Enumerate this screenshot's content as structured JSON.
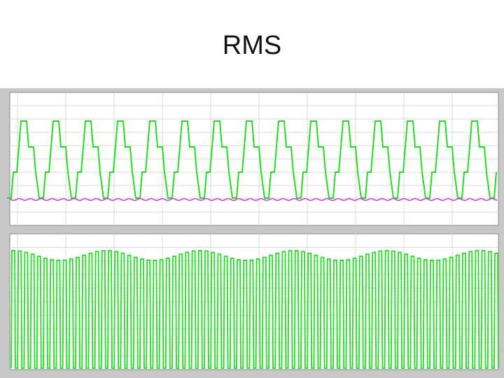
{
  "header": {
    "title": "RMS"
  }
}
